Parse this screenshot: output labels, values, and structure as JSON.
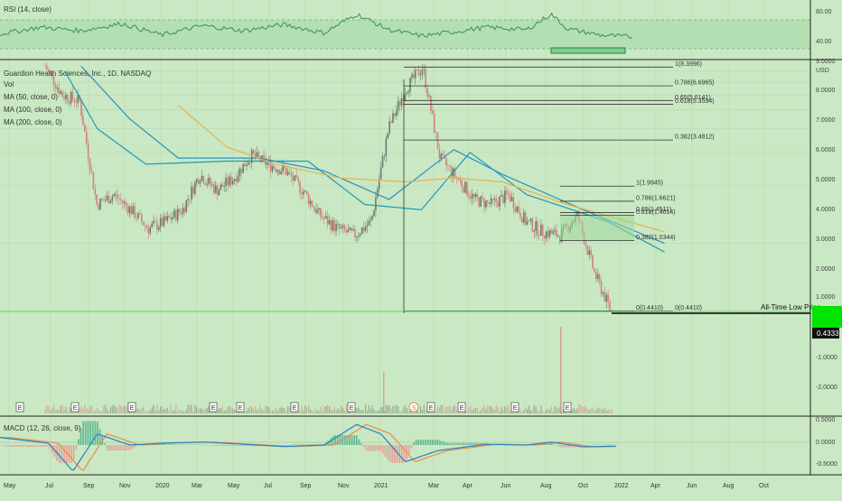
{
  "colors": {
    "background": "#c9e8c3",
    "grid": "#b6d6b0",
    "candle_up": "#6a7d6e",
    "candle_down": "#d2827a",
    "ma50": "#1f9bb8",
    "ma100": "#2f8fc2",
    "ma200": "#e6b24a",
    "rsi_line": "#3a8f55",
    "rsi_band": "#a9dcad",
    "macd_line": "#2d7fc4",
    "signal_line": "#f08a4b",
    "hist_pos": "#55b48c",
    "hist_neg": "#e99b93",
    "fib": "#333333",
    "accent": "#00e400"
  },
  "rsi_panel": {
    "title": "RSI (14, close)",
    "axis_labels": [
      "80.00",
      "40.00"
    ]
  },
  "price_panel": {
    "title": "Guardion Health Sciences, Inc., 1D, NASDAQ",
    "currency": "USD",
    "legend": [
      "Vol",
      "MA (50, close, 0)",
      "MA (100, close, 0)",
      "MA (200, close, 0)"
    ],
    "axis_labels": [
      "9.0000",
      "8.0000",
      "7.0000",
      "6.0000",
      "5.0000",
      "4.0000",
      "3.0000",
      "2.0000",
      "1.0000",
      "-1.0000",
      "-2.0000"
    ],
    "last_price": "0.4333",
    "annotation": "All-Time Low Price",
    "earnings_marker": "E",
    "dividend_marker": "S"
  },
  "fib_large": [
    {
      "label": "1(8.3996)"
    },
    {
      "label": "0.786(6.6965)"
    },
    {
      "label": "0.65(5.6141)"
    },
    {
      "label": "0.618(5.3594)"
    },
    {
      "label": "0.382(3.4812)"
    },
    {
      "label": "0(0.4410)"
    }
  ],
  "fib_small": [
    {
      "label": "1(1.9945)"
    },
    {
      "label": "0.786(1.6621)"
    },
    {
      "label": "0.65(1.4511)"
    },
    {
      "label": "0.618(1.4014)"
    },
    {
      "label": "0.382(1.0344)"
    },
    {
      "label": "0(0.4410)"
    }
  ],
  "macd_panel": {
    "title": "MACD (12, 26, close, 9)",
    "axis_labels": [
      "0.5000",
      "0.0000",
      "-0.5000"
    ]
  },
  "time_axis": [
    "May",
    "Jul",
    "Sep",
    "Nov",
    "2020",
    "Mar",
    "May",
    "Jul",
    "Sep",
    "Nov",
    "2021",
    "Mar",
    "Apr",
    "Jun",
    "Aug",
    "Oct",
    "2022",
    "Apr",
    "Jun",
    "Aug",
    "Oct"
  ],
  "chart_data": {
    "type": "candlestick",
    "symbol": "Guardion Health Sciences, Inc.",
    "interval": "1D",
    "exchange": "NASDAQ",
    "y_unit": "USD",
    "y_scale": "log",
    "ylim": [
      0.43,
      9.0
    ],
    "last_price": 0.4333,
    "price_path": [
      {
        "t": "2019-05",
        "close": 8.5
      },
      {
        "t": "2019-06",
        "close": 6.0
      },
      {
        "t": "2019-07",
        "close": 5.6
      },
      {
        "t": "2019-08",
        "close": 1.6
      },
      {
        "t": "2019-09",
        "close": 1.8
      },
      {
        "t": "2019-10",
        "close": 1.5
      },
      {
        "t": "2019-11",
        "close": 1.2
      },
      {
        "t": "2019-12",
        "close": 1.3
      },
      {
        "t": "2020-01",
        "close": 1.5
      },
      {
        "t": "2020-02",
        "close": 2.3
      },
      {
        "t": "2020-03",
        "close": 1.9
      },
      {
        "t": "2020-04",
        "close": 2.2
      },
      {
        "t": "2020-05",
        "close": 2.9
      },
      {
        "t": "2020-06",
        "close": 2.6
      },
      {
        "t": "2020-07",
        "close": 2.4
      },
      {
        "t": "2020-08",
        "close": 1.9
      },
      {
        "t": "2020-09",
        "close": 1.4
      },
      {
        "t": "2020-10",
        "close": 1.2
      },
      {
        "t": "2020-11",
        "close": 1.1
      },
      {
        "t": "2020-12",
        "close": 1.3
      },
      {
        "t": "2021-01",
        "close": 4.0
      },
      {
        "t": "2021-02",
        "close": 6.5
      },
      {
        "t": "2021-02-15",
        "close": 8.4
      },
      {
        "t": "2021-03",
        "close": 2.8
      },
      {
        "t": "2021-04",
        "close": 2.2
      },
      {
        "t": "2021-05",
        "close": 1.7
      },
      {
        "t": "2021-06",
        "close": 1.6
      },
      {
        "t": "2021-07",
        "close": 1.8
      },
      {
        "t": "2021-08",
        "close": 1.3
      },
      {
        "t": "2021-09",
        "close": 1.15
      },
      {
        "t": "2021-10",
        "close": 1.1
      },
      {
        "t": "2021-11",
        "close": 1.4
      },
      {
        "t": "2021-12",
        "close": 0.7
      },
      {
        "t": "2022-01",
        "close": 0.4333
      }
    ],
    "moving_averages": [
      {
        "name": "MA (50, close, 0)",
        "path": [
          [
            0.08,
            8.0
          ],
          [
            0.12,
            4.0
          ],
          [
            0.18,
            2.6
          ],
          [
            0.28,
            2.7
          ],
          [
            0.38,
            2.7
          ],
          [
            0.45,
            1.6
          ],
          [
            0.52,
            1.5
          ],
          [
            0.58,
            3.0
          ],
          [
            0.65,
            1.8
          ],
          [
            0.75,
            1.3
          ],
          [
            0.82,
            0.9
          ]
        ]
      },
      {
        "name": "MA (100, close, 0)",
        "path": [
          [
            0.1,
            8.5
          ],
          [
            0.16,
            4.5
          ],
          [
            0.22,
            2.8
          ],
          [
            0.32,
            2.8
          ],
          [
            0.4,
            2.4
          ],
          [
            0.48,
            1.7
          ],
          [
            0.56,
            3.1
          ],
          [
            0.62,
            2.3
          ],
          [
            0.72,
            1.5
          ],
          [
            0.82,
            1.0
          ]
        ]
      },
      {
        "name": "MA (200, close, 0)",
        "path": [
          [
            0.22,
            5.3
          ],
          [
            0.28,
            3.2
          ],
          [
            0.34,
            2.6
          ],
          [
            0.42,
            2.2
          ],
          [
            0.5,
            2.1
          ],
          [
            0.56,
            2.2
          ],
          [
            0.62,
            2.1
          ],
          [
            0.7,
            1.6
          ],
          [
            0.82,
            1.15
          ]
        ]
      }
    ],
    "fibonacci_major": {
      "from": 8.3996,
      "to": 0.441,
      "levels": [
        [
          1,
          8.3996
        ],
        [
          0.786,
          6.6965
        ],
        [
          0.65,
          5.6141
        ],
        [
          0.618,
          5.3594
        ],
        [
          0.382,
          3.4812
        ],
        [
          0,
          0.441
        ]
      ]
    },
    "fibonacci_minor": {
      "from": 1.9945,
      "to": 0.441,
      "levels": [
        [
          1,
          1.9945
        ],
        [
          0.786,
          1.6621
        ],
        [
          0.65,
          1.4511
        ],
        [
          0.618,
          1.4014
        ],
        [
          0.382,
          1.0344
        ],
        [
          0,
          0.441
        ]
      ]
    },
    "rsi": {
      "period": 14,
      "ylim": [
        0,
        100
      ],
      "band": [
        30,
        70
      ],
      "path": [
        [
          0,
          42
        ],
        [
          0.05,
          55
        ],
        [
          0.1,
          48
        ],
        [
          0.15,
          62
        ],
        [
          0.2,
          40
        ],
        [
          0.25,
          58
        ],
        [
          0.3,
          48
        ],
        [
          0.35,
          60
        ],
        [
          0.4,
          44
        ],
        [
          0.44,
          80
        ],
        [
          0.48,
          50
        ],
        [
          0.52,
          38
        ],
        [
          0.56,
          46
        ],
        [
          0.6,
          55
        ],
        [
          0.65,
          50
        ],
        [
          0.68,
          80
        ],
        [
          0.7,
          52
        ],
        [
          0.74,
          40
        ],
        [
          0.78,
          36
        ]
      ]
    },
    "macd": {
      "fast": 12,
      "slow": 26,
      "signal": 9,
      "ylim": [
        -0.7,
        0.7
      ]
    },
    "annotation": "All-Time Low Price"
  }
}
